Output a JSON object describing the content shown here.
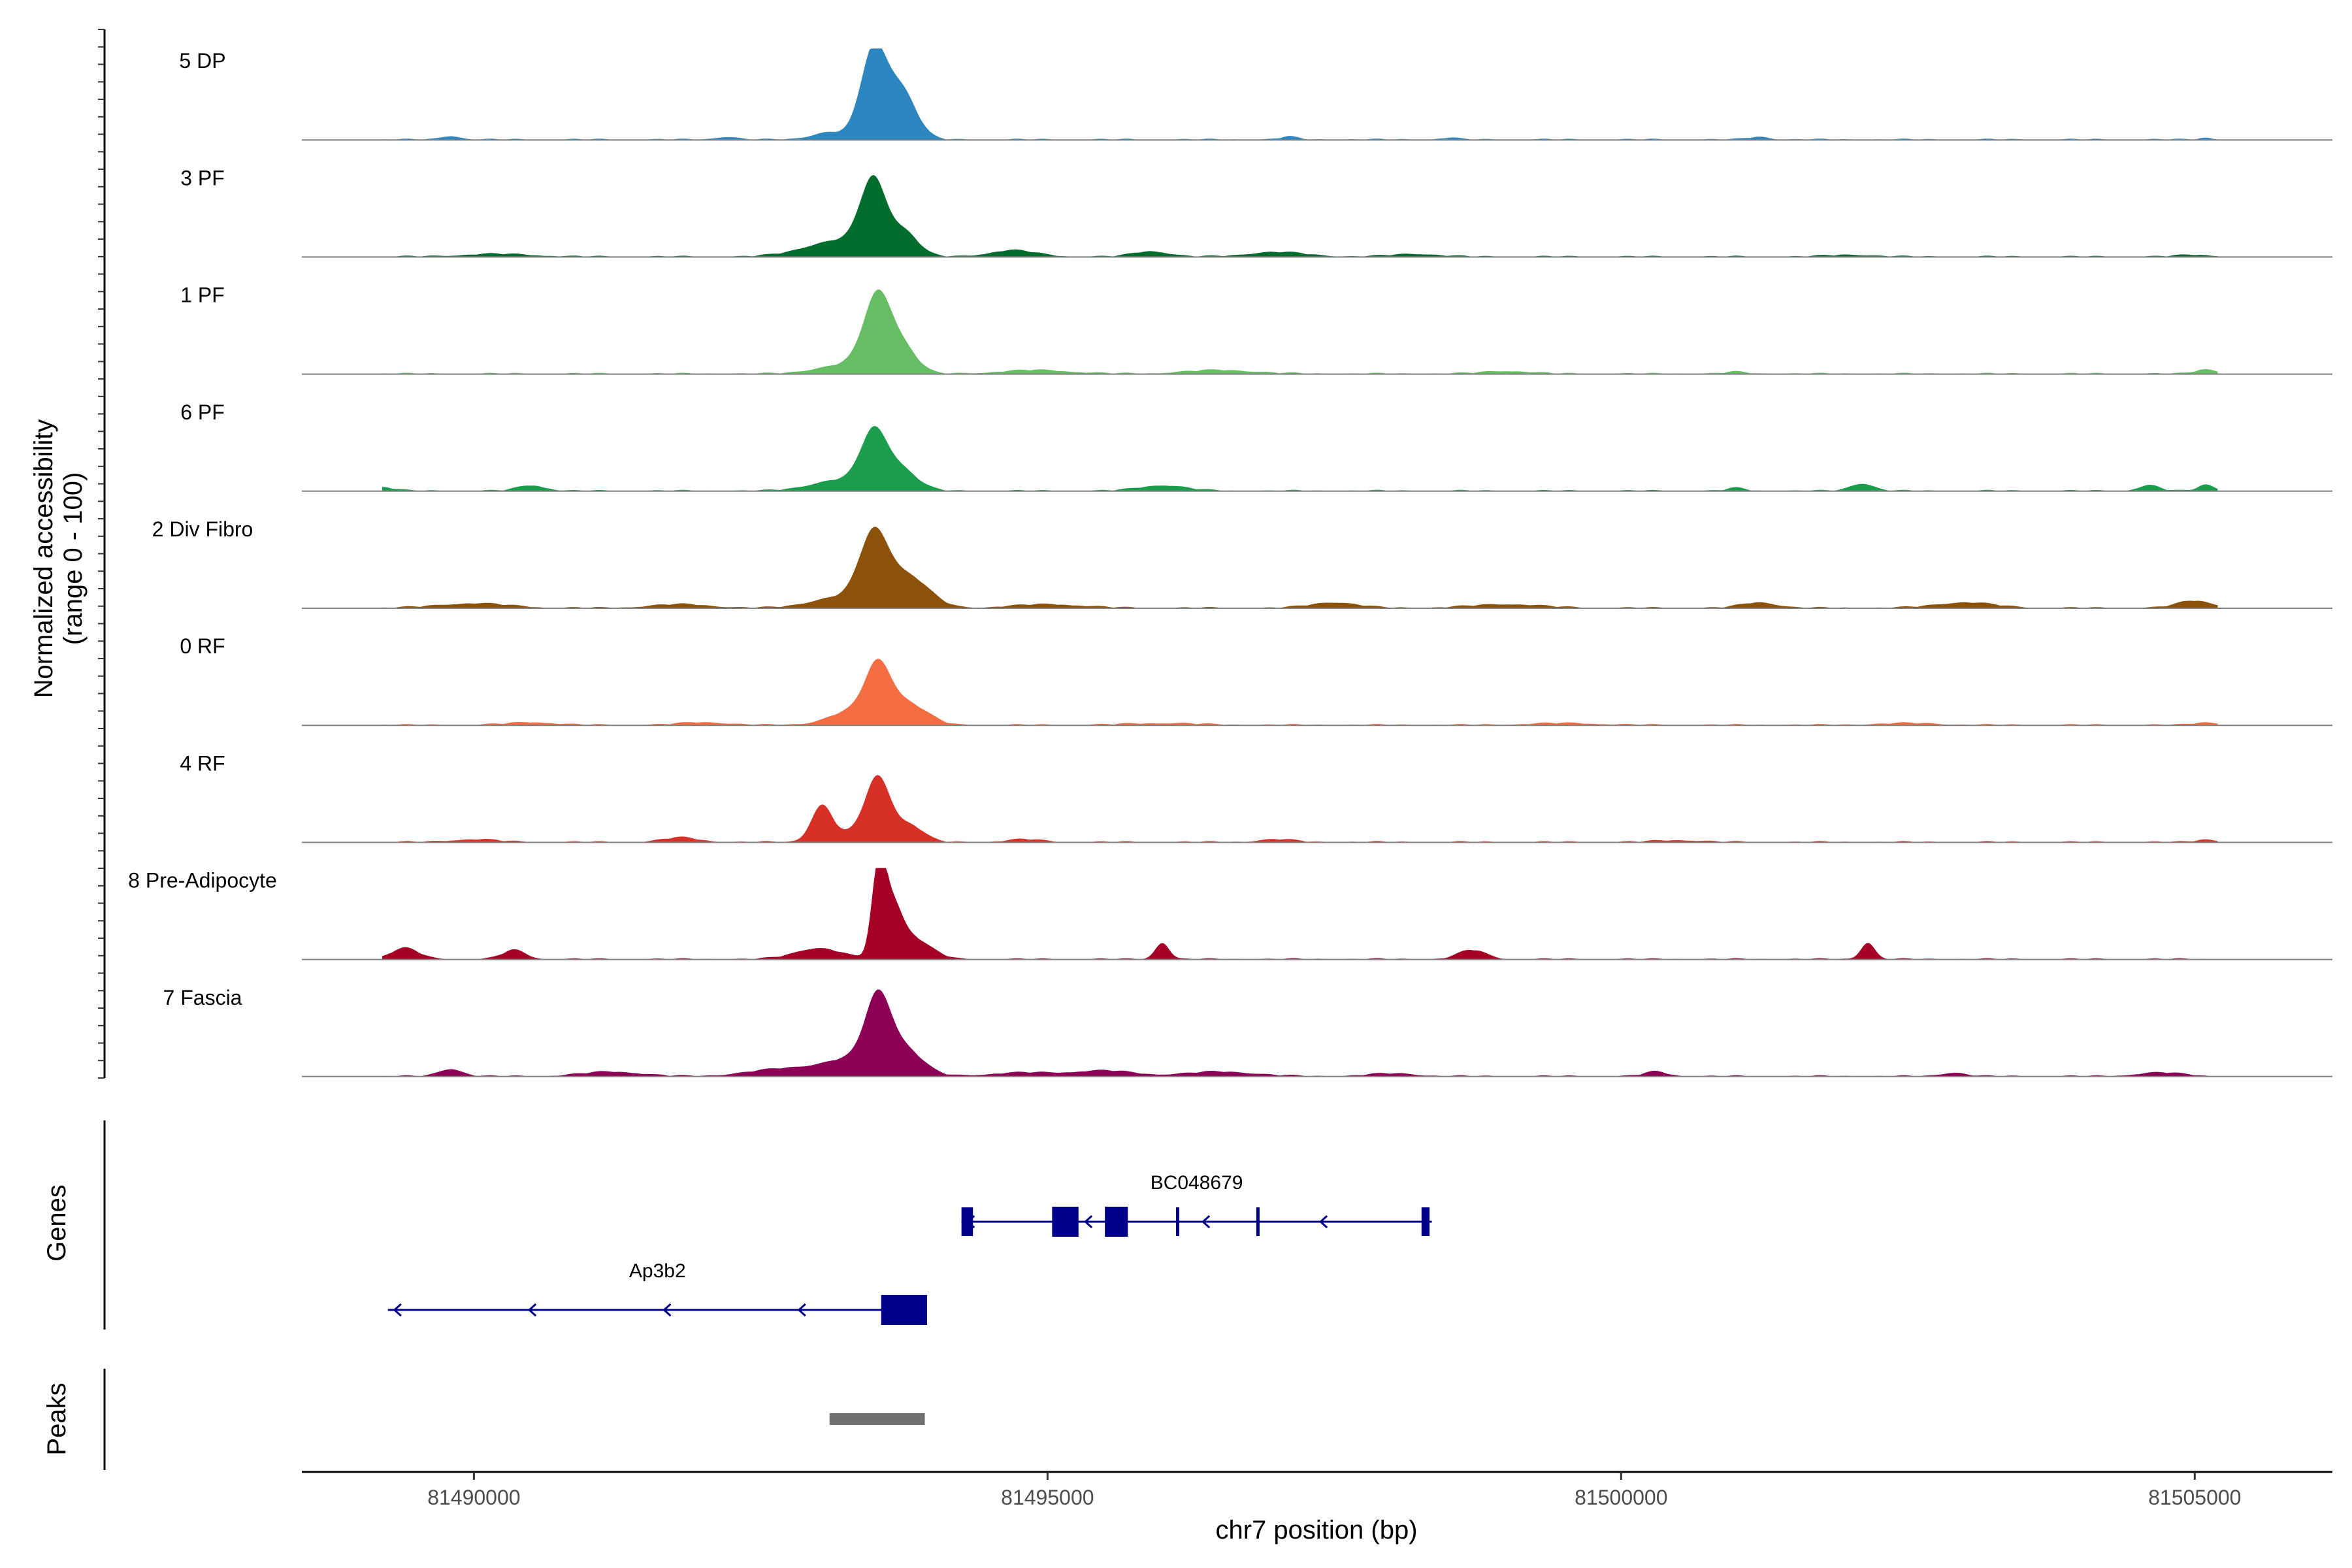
{
  "chart_data": {
    "type": "area",
    "title": "",
    "xlabel": "chr7 position (bp)",
    "ylabel": "Normalized accessibility",
    "ylabel_sub": "(range 0 - 100)",
    "xlim": [
      81488500,
      81506200
    ],
    "xticks": [
      81490000,
      81495000,
      81500000,
      81505000
    ],
    "xtick_labels": [
      "81490000",
      "81495000",
      "81500000",
      "81505000"
    ],
    "ylim": [
      0,
      100
    ],
    "tracks": [
      {
        "name": "5 DP",
        "color": "#2E86C1",
        "peaks": [
          [
            81493480,
            95,
            110
          ],
          [
            81493720,
            55,
            130
          ],
          [
            81493100,
            8,
            150
          ],
          [
            81489800,
            4,
            80
          ],
          [
            81492200,
            3,
            90
          ],
          [
            81497100,
            3,
            80
          ],
          [
            81498500,
            2,
            70
          ],
          [
            81501200,
            3,
            90
          ],
          [
            81505100,
            2,
            60
          ]
        ]
      },
      {
        "name": "3 PF",
        "color": "#006D2C",
        "peaks": [
          [
            81493480,
            75,
            110
          ],
          [
            81493750,
            25,
            120
          ],
          [
            81493200,
            18,
            300
          ],
          [
            81494700,
            7,
            200
          ],
          [
            81495900,
            6,
            150
          ],
          [
            81497000,
            5,
            250
          ],
          [
            81498200,
            3,
            200
          ],
          [
            81490200,
            3,
            300
          ],
          [
            81502000,
            2,
            200
          ],
          [
            81505000,
            2,
            150
          ]
        ]
      },
      {
        "name": "1 PF",
        "color": "#66BD63",
        "peaks": [
          [
            81493520,
            82,
            120
          ],
          [
            81493750,
            25,
            120
          ],
          [
            81493250,
            10,
            250
          ],
          [
            81494900,
            4,
            300
          ],
          [
            81496500,
            4,
            300
          ],
          [
            81499000,
            3,
            200
          ],
          [
            81501000,
            2,
            100
          ],
          [
            81505100,
            5,
            90
          ]
        ]
      },
      {
        "name": "6 PF",
        "color": "#1B9E4B",
        "peaks": [
          [
            81493480,
            55,
            110
          ],
          [
            81493700,
            25,
            150
          ],
          [
            81493200,
            12,
            250
          ],
          [
            81490500,
            6,
            120
          ],
          [
            81496000,
            6,
            200
          ],
          [
            81502100,
            8,
            100
          ],
          [
            81504600,
            6,
            90
          ],
          [
            81505100,
            7,
            70
          ],
          [
            81489200,
            4,
            100
          ],
          [
            81501000,
            3,
            80
          ]
        ]
      },
      {
        "name": "2 Div Fibro",
        "color": "#8C510A",
        "peaks": [
          [
            81493480,
            70,
            120
          ],
          [
            81493700,
            28,
            160
          ],
          [
            81493900,
            15,
            150
          ],
          [
            81493200,
            12,
            250
          ],
          [
            81490000,
            5,
            300
          ],
          [
            81491800,
            4,
            250
          ],
          [
            81495000,
            4,
            300
          ],
          [
            81497500,
            6,
            200
          ],
          [
            81499000,
            4,
            300
          ],
          [
            81501200,
            6,
            150
          ],
          [
            81503000,
            6,
            250
          ],
          [
            81505000,
            8,
            150
          ]
        ]
      },
      {
        "name": "0 RF",
        "color": "#F46D43",
        "peaks": [
          [
            81493520,
            58,
            110
          ],
          [
            81493750,
            22,
            140
          ],
          [
            81493300,
            15,
            200
          ],
          [
            81493950,
            6,
            120
          ],
          [
            81490500,
            3,
            200
          ],
          [
            81492000,
            3,
            200
          ],
          [
            81496000,
            2,
            300
          ],
          [
            81499500,
            2,
            300
          ],
          [
            81502500,
            2,
            250
          ],
          [
            81505100,
            3,
            100
          ]
        ]
      },
      {
        "name": "4 RF",
        "color": "#D73027",
        "peaks": [
          [
            81493520,
            70,
            110
          ],
          [
            81493030,
            38,
            90
          ],
          [
            81493800,
            18,
            120
          ],
          [
            81493250,
            8,
            150
          ],
          [
            81491800,
            5,
            150
          ],
          [
            81490000,
            3,
            200
          ],
          [
            81494800,
            3,
            150
          ],
          [
            81497000,
            3,
            150
          ],
          [
            81500500,
            2,
            200
          ],
          [
            81505100,
            3,
            80
          ]
        ]
      },
      {
        "name": "8 Pre-Adipocyte",
        "color": "#A50026",
        "peaks": [
          [
            81493530,
            100,
            60
          ],
          [
            81493650,
            55,
            80
          ],
          [
            81493800,
            18,
            100
          ],
          [
            81493000,
            12,
            200
          ],
          [
            81489400,
            12,
            120
          ],
          [
            81490350,
            10,
            100
          ],
          [
            81496000,
            18,
            60
          ],
          [
            81498700,
            10,
            120
          ],
          [
            81502150,
            18,
            60
          ],
          [
            81493950,
            10,
            120
          ]
        ]
      },
      {
        "name": "7 Fascia",
        "color": "#8C0056",
        "peaks": [
          [
            81493520,
            72,
            110
          ],
          [
            81493750,
            28,
            160
          ],
          [
            81493300,
            18,
            250
          ],
          [
            81492700,
            8,
            300
          ],
          [
            81489800,
            8,
            100
          ],
          [
            81491200,
            5,
            250
          ],
          [
            81494800,
            4,
            300
          ],
          [
            81495500,
            6,
            250
          ],
          [
            81496500,
            5,
            300
          ],
          [
            81498000,
            3,
            200
          ],
          [
            81500300,
            5,
            100
          ],
          [
            81502900,
            4,
            100
          ],
          [
            81504700,
            4,
            200
          ]
        ]
      }
    ],
    "genes": [
      {
        "name": "BC048679",
        "strand": "-",
        "start": 81494250,
        "end": 81498350,
        "row": 0,
        "color": "#00008B",
        "exons": [
          [
            81494250,
            81494350
          ],
          [
            81495040,
            81495270
          ],
          [
            81495500,
            81495700
          ],
          [
            81496120,
            81496130
          ],
          [
            81496820,
            81496830
          ],
          [
            81498260,
            81498330
          ]
        ]
      },
      {
        "name": "Ap3b2",
        "strand": "-",
        "start": 81489250,
        "end": 81493950,
        "row": 1,
        "color": "#00008B",
        "exons": [
          [
            81493550,
            81493950
          ]
        ]
      }
    ],
    "peaks": [
      {
        "start": 81493100,
        "end": 81493930,
        "color": "#707070"
      }
    ],
    "panel_labels": {
      "genes": "Genes",
      "peaks": "Peaks"
    }
  }
}
